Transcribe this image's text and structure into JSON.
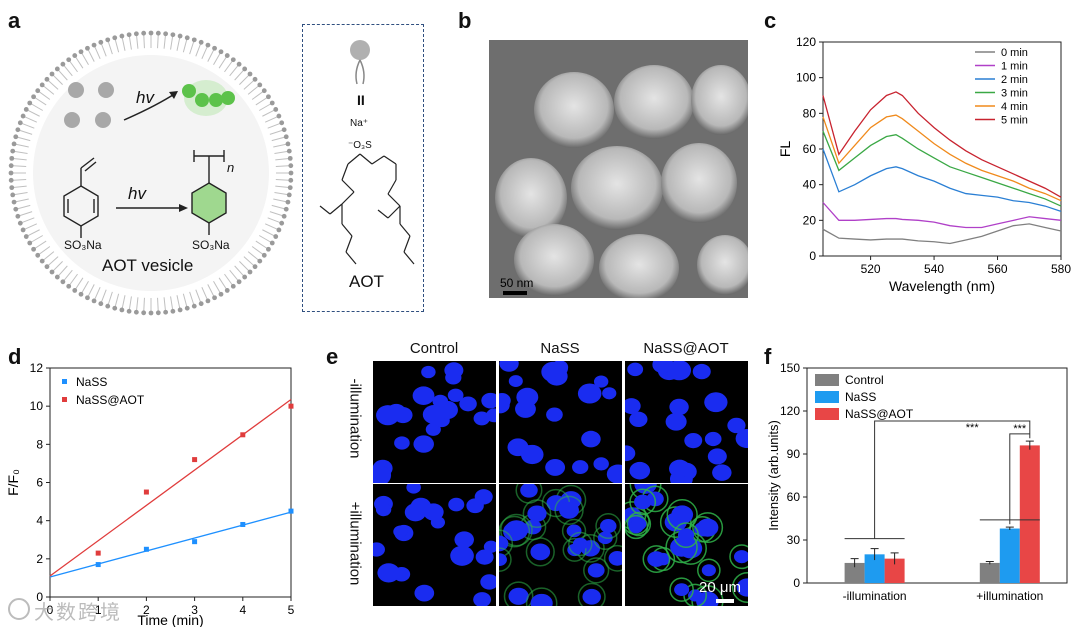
{
  "panels": {
    "a": "a",
    "b": "b",
    "c": "c",
    "d": "d",
    "e": "e",
    "f": "f"
  },
  "panel_a": {
    "hv1": "hv",
    "hv2": "hv",
    "n": "n",
    "so3na_left": "SO₃Na",
    "so3na_right": "SO₃Na",
    "vesicle_label": "AOT vesicle",
    "equiv": "II",
    "na_plus": "Na⁺",
    "so3_minus": "⁻O₃S",
    "aot_label": "AOT",
    "colors": {
      "green": "#4cbb3a",
      "membrane": "#9a9a9a"
    }
  },
  "panel_b": {
    "scale_label": "50 nm"
  },
  "panel_e": {
    "col_headers": [
      "Control",
      "NaSS",
      "NaSS@AOT"
    ],
    "row_headers": [
      "-illumination",
      "+illumination"
    ],
    "scale_label": "20 μm"
  },
  "watermark": "大数跨境",
  "chart_data": [
    {
      "panel": "c",
      "type": "line",
      "xlabel": "Wavelength (nm)",
      "ylabel": "FL",
      "xlim": [
        505,
        580
      ],
      "ylim": [
        0,
        120
      ],
      "xticks": [
        520,
        540,
        560,
        580
      ],
      "yticks": [
        0,
        20,
        40,
        60,
        80,
        100,
        120
      ],
      "legend_position": "top-right",
      "x": [
        505,
        510,
        515,
        520,
        525,
        528,
        530,
        535,
        540,
        545,
        550,
        555,
        560,
        565,
        570,
        575,
        580
      ],
      "series": [
        {
          "name": "0 min",
          "color": "#808080",
          "values": [
            15,
            10,
            9.5,
            9,
            9.5,
            9.5,
            9.5,
            8.5,
            8,
            7,
            9,
            11,
            14,
            17,
            18,
            16,
            14
          ]
        },
        {
          "name": "1 min",
          "color": "#b040c8",
          "values": [
            30,
            20,
            20,
            20.5,
            21,
            21,
            20.5,
            20,
            19,
            17,
            16,
            16,
            18,
            20,
            22,
            21,
            20
          ]
        },
        {
          "name": "2 min",
          "color": "#2a7fd4",
          "values": [
            60,
            36,
            40,
            45,
            49,
            50,
            49,
            45,
            42,
            38,
            35,
            34,
            33,
            31,
            30,
            28,
            25
          ]
        },
        {
          "name": "3 min",
          "color": "#3aa845",
          "values": [
            70,
            48,
            55,
            62,
            67,
            68,
            66,
            60,
            55,
            50,
            47,
            44,
            41,
            38,
            35,
            32,
            28
          ]
        },
        {
          "name": "4 min",
          "color": "#f08a1c",
          "values": [
            78,
            52,
            62,
            72,
            78,
            79,
            77,
            70,
            63,
            57,
            52,
            48,
            45,
            42,
            38,
            35,
            31
          ]
        },
        {
          "name": "5 min",
          "color": "#c8232f",
          "values": [
            90,
            57,
            70,
            82,
            90,
            92,
            90,
            80,
            72,
            65,
            59,
            54,
            50,
            46,
            42,
            38,
            33
          ]
        }
      ]
    },
    {
      "panel": "d",
      "type": "scatter",
      "xlabel": "Time (min)",
      "ylabel": "F/F₀",
      "xlim": [
        0,
        5
      ],
      "ylim": [
        0,
        12
      ],
      "xticks": [
        0,
        1,
        2,
        3,
        4,
        5
      ],
      "yticks": [
        0,
        2,
        4,
        6,
        8,
        10,
        12
      ],
      "legend_position": "top-left",
      "series": [
        {
          "name": "NaSS",
          "color": "#1e90ff",
          "x": [
            1,
            2,
            3,
            4,
            5
          ],
          "values": [
            1.7,
            2.5,
            2.9,
            3.8,
            4.5
          ],
          "fit": [
            1.05,
            0.68
          ]
        },
        {
          "name": "NaSS@AOT",
          "color": "#e03c3c",
          "x": [
            1,
            2,
            3,
            4,
            5
          ],
          "values": [
            2.3,
            5.5,
            7.2,
            8.5,
            10.0
          ],
          "fit": [
            1.1,
            1.85
          ]
        }
      ]
    },
    {
      "panel": "f",
      "type": "bar",
      "ylabel": "Intensity (arb.units)",
      "ylim": [
        0,
        150
      ],
      "yticks": [
        0,
        30,
        60,
        90,
        120,
        150
      ],
      "categories": [
        "-illumination",
        "+illumination"
      ],
      "legend_position": "top-left",
      "significance": [
        "***",
        "***"
      ],
      "series": [
        {
          "name": "Control",
          "color": "#808080",
          "values": [
            14,
            14
          ],
          "errors": [
            3,
            1
          ]
        },
        {
          "name": "NaSS",
          "color": "#1e9bf0",
          "values": [
            20,
            38
          ],
          "errors": [
            4,
            1
          ]
        },
        {
          "name": "NaSS@AOT",
          "color": "#e84646",
          "values": [
            17,
            96
          ],
          "errors": [
            4,
            3
          ]
        }
      ]
    }
  ]
}
